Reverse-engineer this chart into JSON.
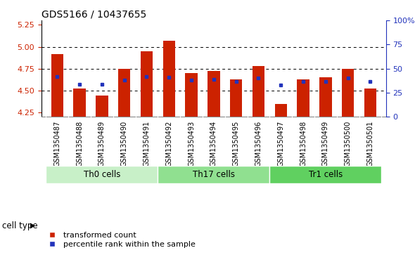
{
  "title": "GDS5166 / 10437655",
  "samples": [
    "GSM1350487",
    "GSM1350488",
    "GSM1350489",
    "GSM1350490",
    "GSM1350491",
    "GSM1350492",
    "GSM1350493",
    "GSM1350494",
    "GSM1350495",
    "GSM1350496",
    "GSM1350497",
    "GSM1350498",
    "GSM1350499",
    "GSM1350500",
    "GSM1350501"
  ],
  "red_values": [
    4.92,
    4.52,
    4.44,
    4.75,
    4.95,
    5.07,
    4.7,
    4.72,
    4.63,
    4.78,
    4.35,
    4.63,
    4.65,
    4.75,
    4.52
  ],
  "blue_values": [
    4.66,
    4.57,
    4.57,
    4.62,
    4.66,
    4.65,
    4.62,
    4.63,
    4.6,
    4.64,
    4.56,
    4.6,
    4.6,
    4.64,
    4.6
  ],
  "cell_groups": [
    {
      "label": "Th0 cells",
      "start": 0,
      "end": 5,
      "color": "#c8f0c8"
    },
    {
      "label": "Th17 cells",
      "start": 5,
      "end": 10,
      "color": "#90e090"
    },
    {
      "label": "Tr1 cells",
      "start": 10,
      "end": 15,
      "color": "#60d060"
    }
  ],
  "ylim_left": [
    4.2,
    5.3
  ],
  "yticks_left": [
    4.25,
    4.5,
    4.75,
    5.0,
    5.25
  ],
  "yticks_right": [
    0,
    25,
    50,
    75,
    100
  ],
  "bar_color": "#cc2200",
  "blue_color": "#2233bb",
  "bar_width": 0.55,
  "baseline": 4.2,
  "bg_xtick": "#c8c8c8",
  "legend_items": [
    "transformed count",
    "percentile rank within the sample"
  ],
  "cell_type_label": "cell type",
  "title_fontsize": 10,
  "tick_fontsize": 8,
  "label_fontsize": 8.5,
  "sample_fontsize": 7
}
